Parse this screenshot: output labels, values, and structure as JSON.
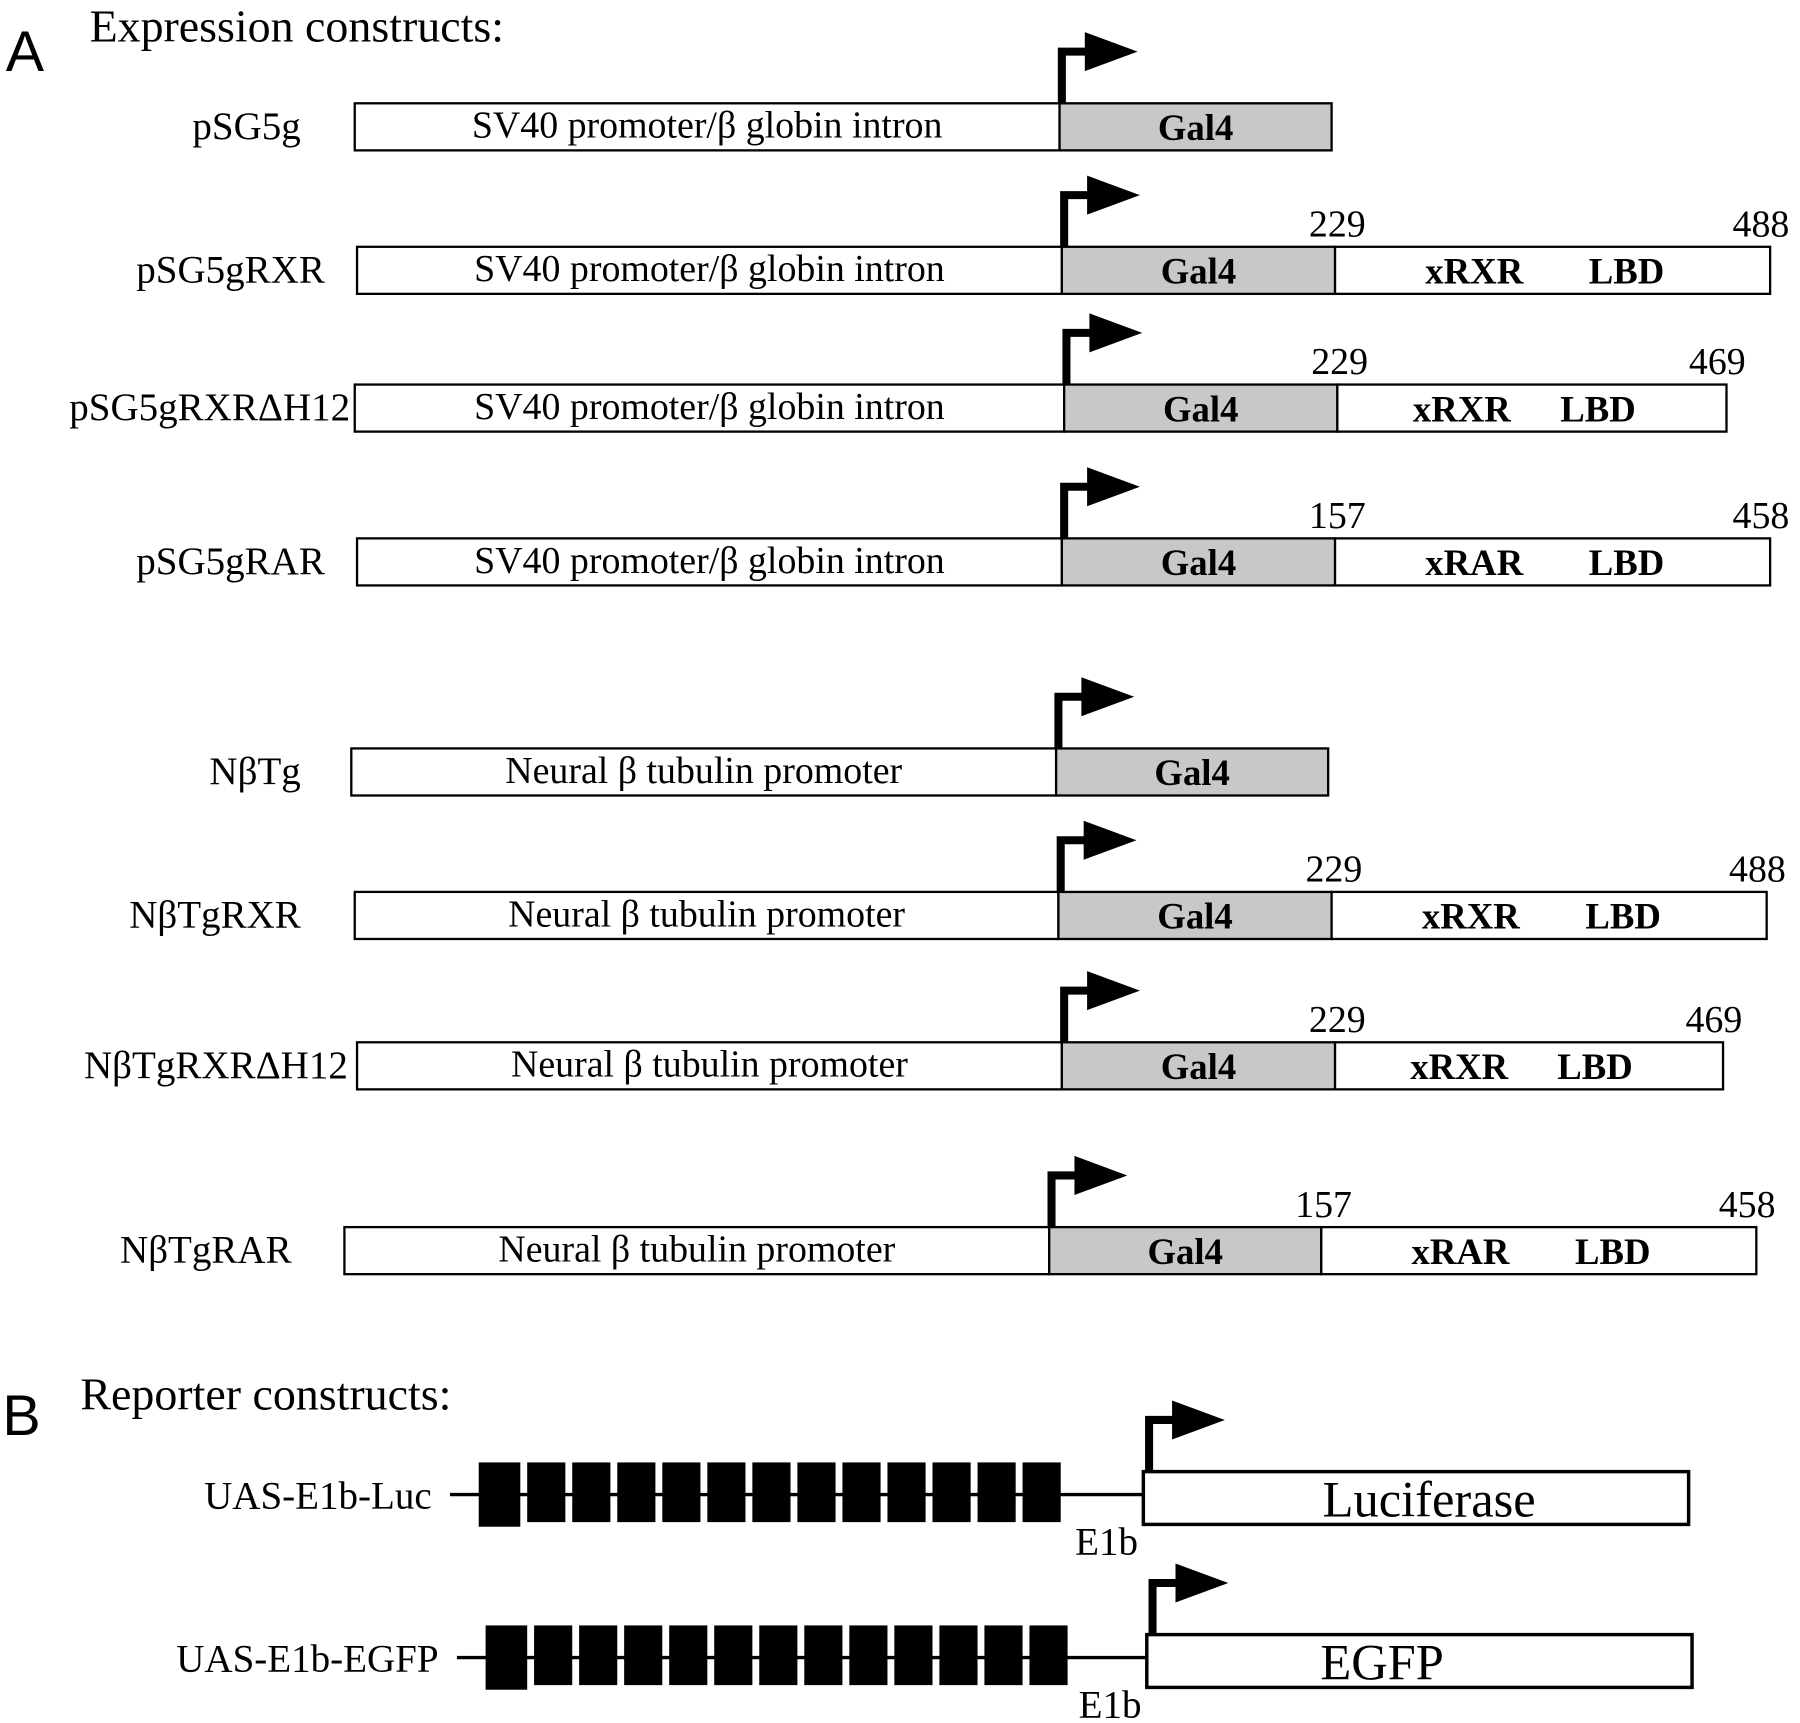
{
  "panel_a": {
    "letter": "A",
    "heading": "Expression constructs:",
    "constructs": [
      {
        "name": "pSG5g",
        "promoter": "SV40 promoter/β globin intron",
        "gal4": "Gal4",
        "lbd": null
      },
      {
        "name": "pSG5gRXR",
        "promoter": "SV40 promoter/β globin intron",
        "gal4": "Gal4",
        "lbd": {
          "receptor": "xRXR",
          "domain": "LBD",
          "start": "229",
          "end": "488"
        }
      },
      {
        "name": "pSG5gRXRΔH12",
        "promoter": "SV40 promoter/β globin intron",
        "gal4": "Gal4",
        "lbd": {
          "receptor": "xRXR",
          "domain": "LBD",
          "start": "229",
          "end": "469"
        }
      },
      {
        "name": "pSG5gRAR",
        "promoter": "SV40 promoter/β globin intron",
        "gal4": "Gal4",
        "lbd": {
          "receptor": "xRAR",
          "domain": "LBD",
          "start": "157",
          "end": "458"
        }
      },
      {
        "name": "NβTg",
        "promoter": "Neural β tubulin promoter",
        "gal4": "Gal4",
        "lbd": null
      },
      {
        "name": "NβTgRXR",
        "promoter": "Neural β tubulin promoter",
        "gal4": "Gal4",
        "lbd": {
          "receptor": "xRXR",
          "domain": "LBD",
          "start": "229",
          "end": "488"
        }
      },
      {
        "name": "NβTgRXRΔH12",
        "promoter": "Neural β tubulin promoter",
        "gal4": "Gal4",
        "lbd": {
          "receptor": "xRXR",
          "domain": "LBD",
          "start": "229",
          "end": "469"
        }
      },
      {
        "name": "NβTgRAR",
        "promoter": "Neural β tubulin promoter",
        "gal4": "Gal4",
        "lbd": {
          "receptor": "xRAR",
          "domain": "LBD",
          "start": "157",
          "end": "458"
        }
      }
    ]
  },
  "panel_b": {
    "letter": "B",
    "heading": "Reporter constructs:",
    "constructs": [
      {
        "name": "UAS-E1b-Luc",
        "uas_repeats": 13,
        "minimal_promoter": "E1b",
        "reporter": "Luciferase"
      },
      {
        "name": "UAS-E1b-EGFP",
        "uas_repeats": 13,
        "minimal_promoter": "E1b",
        "reporter": "EGFP"
      }
    ]
  },
  "colors": {
    "gal4_fill": "#c8c8c8",
    "line": "#000000",
    "background": "#ffffff"
  }
}
